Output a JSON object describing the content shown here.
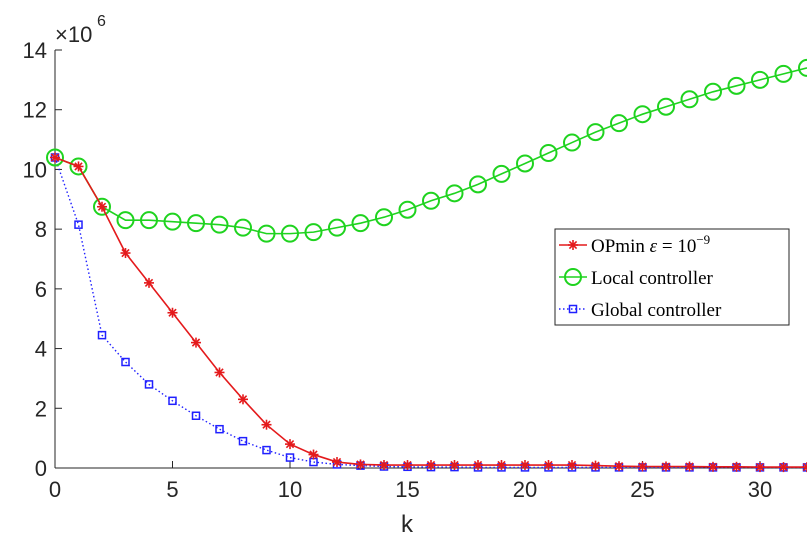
{
  "chart_data": {
    "type": "line",
    "xlabel": "k",
    "ylabel": "",
    "xlim": [
      0,
      32
    ],
    "ylim": [
      0,
      14
    ],
    "x_ticks": [
      "0",
      "5",
      "10",
      "15",
      "20",
      "25",
      "30"
    ],
    "y_ticks": [
      "0",
      "2",
      "4",
      "6",
      "8",
      "10",
      "12",
      "14"
    ],
    "y_exponent_base": "×10",
    "y_exponent_power": "6",
    "grid": false,
    "legend_position": "right",
    "x": [
      0,
      1,
      2,
      3,
      4,
      5,
      6,
      7,
      8,
      9,
      10,
      11,
      12,
      13,
      14,
      15,
      16,
      17,
      18,
      19,
      20,
      21,
      22,
      23,
      24,
      25,
      26,
      27,
      28,
      29,
      30,
      31,
      32
    ],
    "series": [
      {
        "name_main": "OPmin ",
        "name_eps": "ε",
        "name_eq": " = 10",
        "name_sup": "−9",
        "color": "#e41a1c",
        "marker": "asterisk",
        "line": "solid",
        "values": [
          10.4,
          10.1,
          8.75,
          7.2,
          6.2,
          5.2,
          4.2,
          3.2,
          2.3,
          1.45,
          0.8,
          0.45,
          0.2,
          0.12,
          0.1,
          0.1,
          0.1,
          0.1,
          0.1,
          0.1,
          0.1,
          0.1,
          0.1,
          0.08,
          0.06,
          0.05,
          0.05,
          0.05,
          0.04,
          0.04,
          0.03,
          0.03,
          0.03
        ]
      },
      {
        "name": "Local controller",
        "color": "#1fd31f",
        "marker": "circle",
        "line": "solid",
        "values": [
          10.4,
          10.1,
          8.75,
          8.3,
          8.3,
          8.25,
          8.2,
          8.15,
          8.05,
          7.85,
          7.85,
          7.9,
          8.05,
          8.2,
          8.4,
          8.65,
          8.95,
          9.2,
          9.5,
          9.85,
          10.2,
          10.55,
          10.9,
          11.25,
          11.55,
          11.85,
          12.1,
          12.35,
          12.6,
          12.8,
          13.0,
          13.2,
          13.4
        ]
      },
      {
        "name": "Global controller",
        "color": "#2020ff",
        "marker": "square",
        "line": "dotted",
        "values": [
          10.4,
          8.15,
          4.45,
          3.55,
          2.8,
          2.25,
          1.75,
          1.3,
          0.9,
          0.6,
          0.35,
          0.2,
          0.12,
          0.08,
          0.05,
          0.04,
          0.03,
          0.03,
          0.02,
          0.02,
          0.02,
          0.02,
          0.02,
          0.02,
          0.02,
          0.02,
          0.02,
          0.02,
          0.02,
          0.02,
          0.02,
          0.02,
          0.02
        ]
      }
    ]
  }
}
